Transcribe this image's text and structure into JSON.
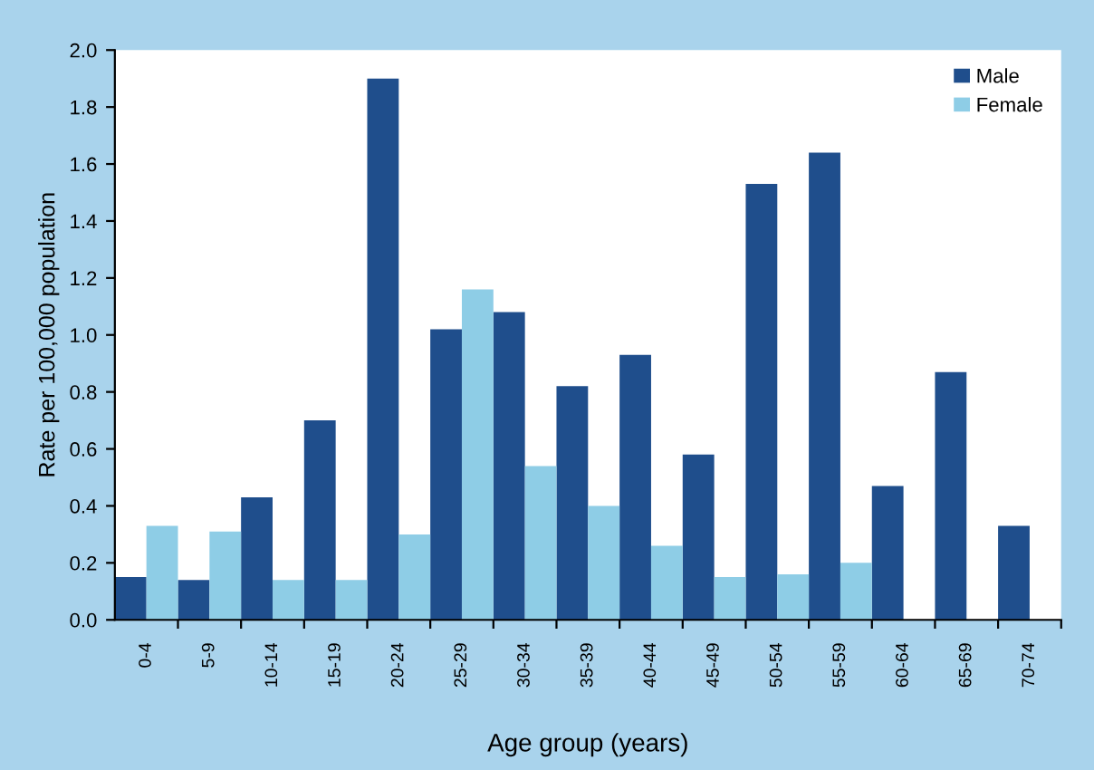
{
  "chart_data": {
    "type": "bar",
    "xlabel": "Age group (years)",
    "ylabel": "Rate per 100,000 population",
    "categories": [
      "0-4",
      "5-9",
      "10-14",
      "15-19",
      "20-24",
      "25-29",
      "30-34",
      "35-39",
      "40-44",
      "45-49",
      "50-54",
      "55-59",
      "60-64",
      "65-69",
      "70-74"
    ],
    "series": [
      {
        "name": "Male",
        "color": "#1f4e8c",
        "values": [
          0.15,
          0.14,
          0.43,
          0.7,
          1.9,
          1.02,
          1.08,
          0.82,
          0.93,
          0.58,
          1.53,
          1.64,
          0.47,
          0.87,
          0.33
        ]
      },
      {
        "name": "Female",
        "color": "#8ecde6",
        "values": [
          0.33,
          0.31,
          0.14,
          0.14,
          0.3,
          1.16,
          0.54,
          0.4,
          0.26,
          0.15,
          0.16,
          0.2,
          0,
          0,
          0
        ]
      }
    ],
    "ylim": [
      0,
      2.0
    ],
    "yticks": [
      {
        "value": 0,
        "label": "0.0"
      },
      {
        "value": 0.2,
        "label": "0.2"
      },
      {
        "value": 0.4,
        "label": "0.4"
      },
      {
        "value": 0.6,
        "label": "0.6"
      },
      {
        "value": 0.8,
        "label": "0.8"
      },
      {
        "value": 1.0,
        "label": "1.0"
      },
      {
        "value": 1.2,
        "label": "1.2"
      },
      {
        "value": 1.4,
        "label": "1.4"
      },
      {
        "value": 1.6,
        "label": "1.6"
      },
      {
        "value": 1.8,
        "label": "1.8"
      },
      {
        "value": 2.0,
        "label": "2.0"
      }
    ],
    "grid": false,
    "legend": "top right"
  }
}
